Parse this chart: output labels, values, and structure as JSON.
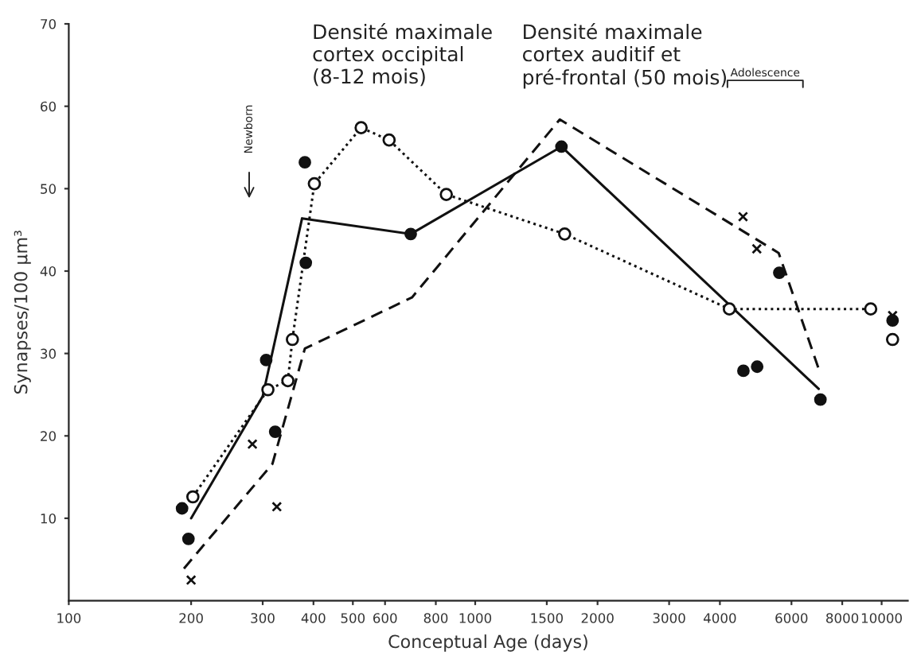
{
  "chart_data": {
    "type": "line",
    "xlabel": "Conceptual Age (days)",
    "ylabel": "Synapses/100 µm³",
    "log": "x",
    "xlim": [
      100,
      11600
    ],
    "xticks": [
      100,
      200,
      300,
      400,
      500,
      600,
      800,
      1000,
      1500,
      2000,
      3000,
      4000,
      6000,
      8000,
      10000
    ],
    "ylim": [
      0,
      70
    ],
    "yticks": [
      10,
      20,
      30,
      40,
      50,
      60,
      70
    ],
    "grid": false,
    "legend": false,
    "annotations": [
      "Densité maximale\ncortex occipital\n(8-12 mois)",
      "Densité maximale\ncortex auditif et\npré-frontal (50 mois)",
      "Newborn",
      "Adolescence"
    ],
    "series": [
      {
        "color": "#111111",
        "line_style": "solid",
        "marker": "none",
        "x": [
          200,
          300,
          375,
          694,
          1630,
          7000
        ],
        "values": [
          10,
          24.8,
          46.4,
          44.5,
          55.1,
          25.7
        ]
      },
      {
        "color": "#111111",
        "line_style": "dotted",
        "marker": "circle",
        "x": [
          202,
          309,
          346,
          355,
          402,
          524,
          614,
          849,
          1660,
          4220,
          9400,
          10000,
          10640
        ],
        "values": [
          12.6,
          25.6,
          26.7,
          31.7,
          50.6,
          57.4,
          55.9,
          49.3,
          44.5,
          35.4,
          35.4,
          null,
          31.7
        ]
      },
      {
        "color": "#111111",
        "line_style": "dashed",
        "marker": "none",
        "x": [
          192,
          317,
          381,
          699,
          1615,
          5580,
          7050
        ],
        "values": [
          3.9,
          16.6,
          30.6,
          36.8,
          58.4,
          42.2,
          27.7
        ]
      },
      {
        "type": "scatter",
        "color": "#111111",
        "marker": "circle",
        "x": [
          190,
          197,
          306,
          322,
          381,
          383,
          694,
          1630,
          4570,
          4940,
          5600,
          7070,
          10640
        ],
        "values": [
          11.2,
          7.5,
          29.2,
          20.5,
          53.2,
          41,
          44.5,
          55.1,
          27.9,
          28.4,
          39.8,
          24.4,
          34
        ]
      },
      {
        "type": "scatter",
        "color": "#111111",
        "marker": "cross",
        "x": [
          200,
          283,
          325,
          4560,
          4930,
          10640
        ],
        "values": [
          2.5,
          19,
          11.4,
          46.6,
          42.7,
          34.6
        ]
      }
    ]
  }
}
